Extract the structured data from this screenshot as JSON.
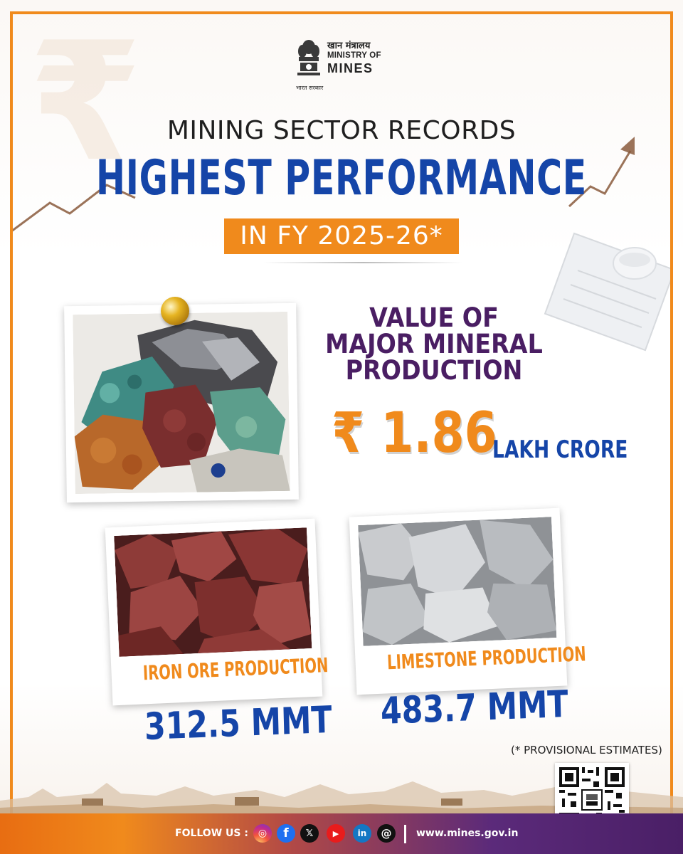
{
  "logo": {
    "hindi": "खान मंत्रालय",
    "ministry_of": "MINISTRY OF",
    "mines": "MINES",
    "govt": "भारत सरकार"
  },
  "headline": {
    "line1": "MINING SECTOR RECORDS",
    "line2": "HIGHEST PERFORMANCE",
    "badge": "IN FY 2025-26*"
  },
  "value_block": {
    "label_line1": "VALUE OF",
    "label_line2": "MAJOR MINERAL",
    "label_line3": "PRODUCTION",
    "amount": "₹ 1.86",
    "unit": "LAKH CRORE"
  },
  "iron_ore": {
    "caption": "IRON ORE PRODUCTION",
    "value": "312.5 MMT"
  },
  "limestone": {
    "caption": "LIMESTONE PRODUCTION",
    "value": "483.7 MMT"
  },
  "footnote": "(* PROVISIONAL ESTIMATES)",
  "footer": {
    "follow_label": "FOLLOW US :",
    "website": "www.mines.gov.in",
    "social_icons": [
      "instagram-icon",
      "facebook-icon",
      "x-icon",
      "youtube-icon",
      "linkedin-icon",
      "threads-icon"
    ]
  },
  "colors": {
    "orange": "#f08a1c",
    "blue": "#1545a8",
    "purple": "#4a1e63"
  }
}
